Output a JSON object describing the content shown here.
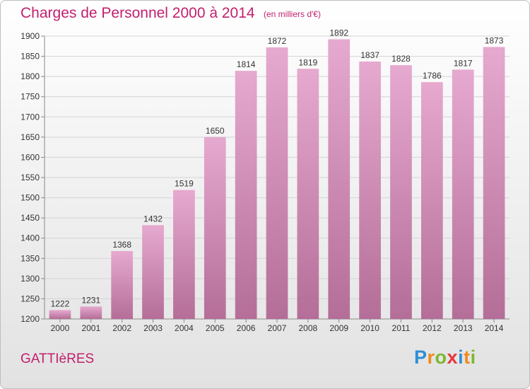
{
  "header": {
    "title": "Charges de Personnel 2000 à 2014",
    "unit_note": "(en milliers d'€)"
  },
  "footer": {
    "commune": "GATTIèRES",
    "logo": {
      "letters": [
        "P",
        "r",
        "o",
        "x",
        "i",
        "t",
        "i"
      ],
      "colors": [
        "#2f8fd6",
        "#f08a1c",
        "#7cb82f",
        "#e8373a",
        "#2f8fd6",
        "#f08a1c",
        "#7cb82f"
      ]
    }
  },
  "chart_data": {
    "type": "bar",
    "title": "Charges de Personnel 2000 à 2014",
    "subtitle": "(en milliers d'€)",
    "categories": [
      "2000",
      "2001",
      "2002",
      "2003",
      "2004",
      "2005",
      "2006",
      "2007",
      "2008",
      "2009",
      "2010",
      "2011",
      "2012",
      "2013",
      "2014"
    ],
    "values": [
      1222,
      1231,
      1368,
      1432,
      1519,
      1650,
      1814,
      1872,
      1819,
      1892,
      1837,
      1828,
      1786,
      1817,
      1873
    ],
    "ylim": [
      1200,
      1900
    ],
    "yticks": [
      1200,
      1250,
      1300,
      1350,
      1400,
      1450,
      1500,
      1550,
      1600,
      1650,
      1700,
      1750,
      1800,
      1850,
      1900
    ],
    "grid": true,
    "bar_color_top": "#e6a9cf",
    "bar_color_bottom": "#b46e98",
    "grid_color": "#d4d4d4",
    "text_color": "#333333"
  }
}
